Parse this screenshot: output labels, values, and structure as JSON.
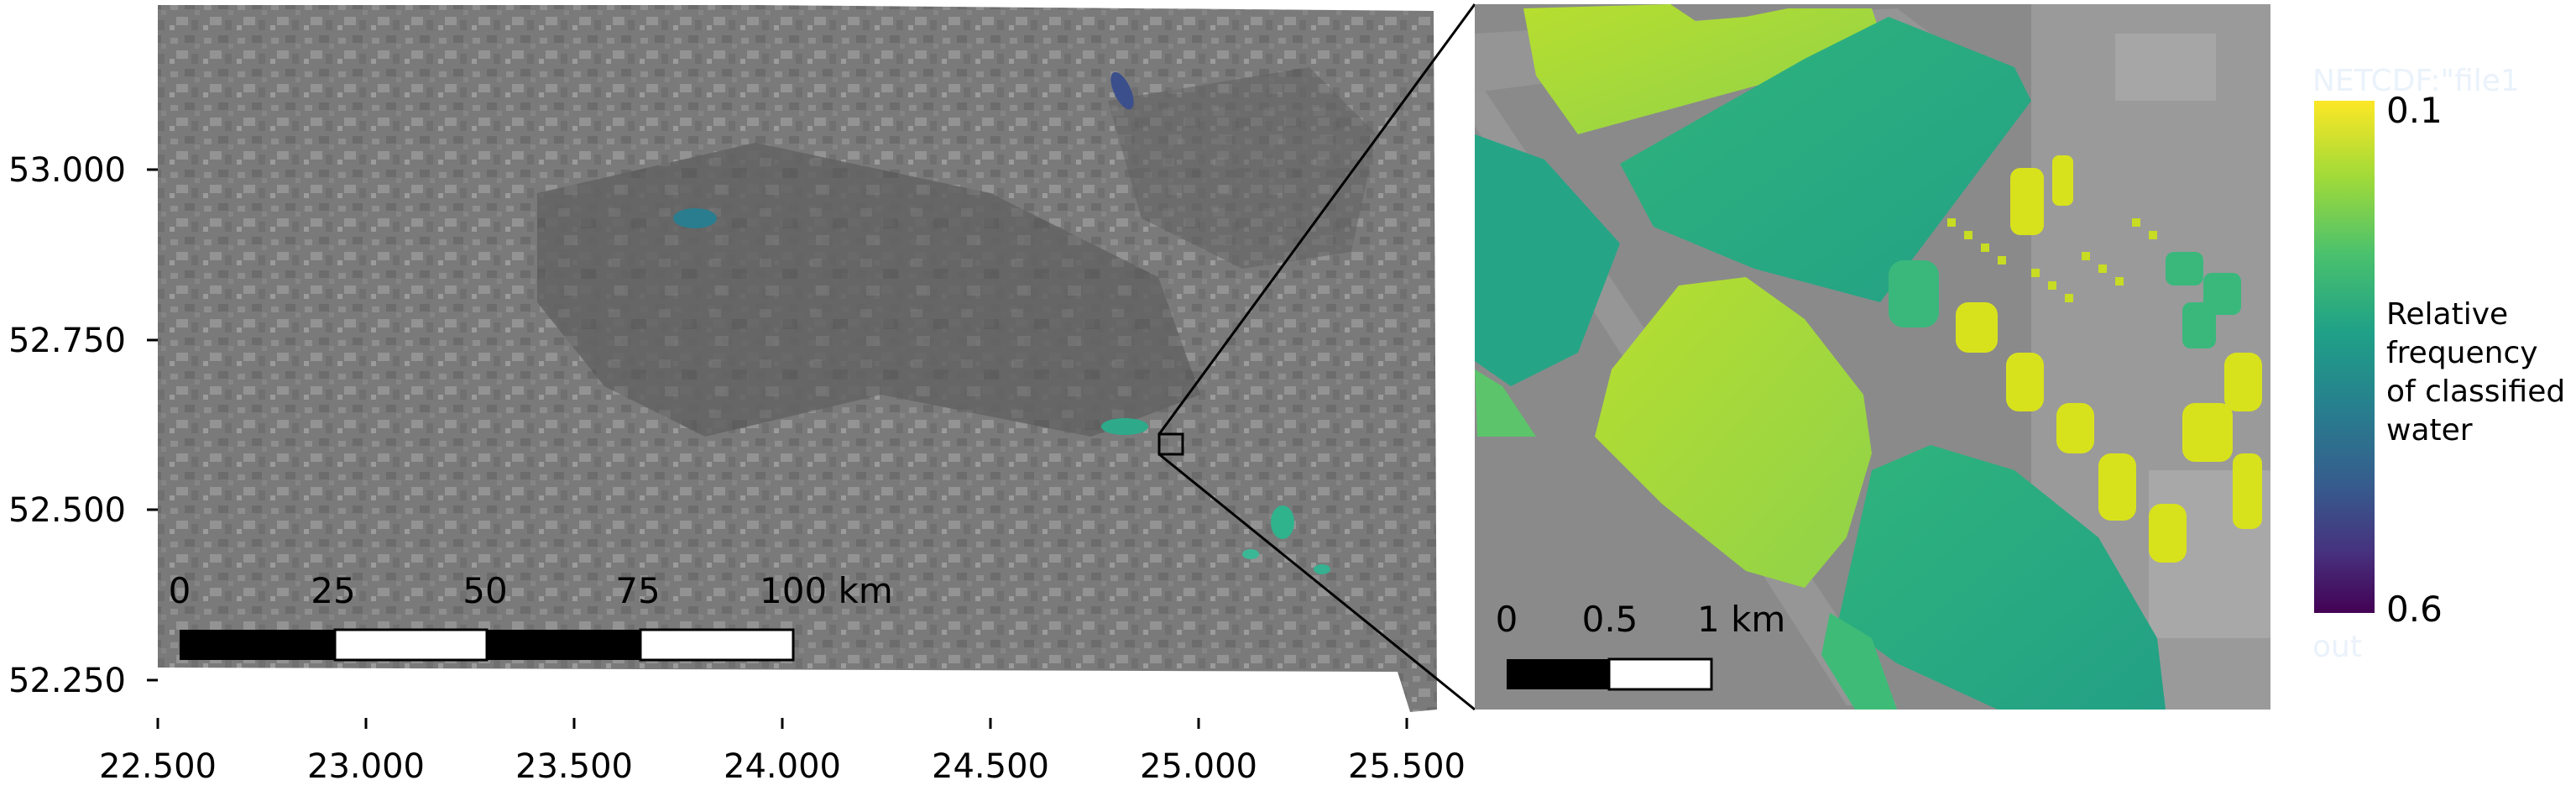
{
  "overview_map": {
    "y_ticks": [
      "53.000",
      "52.750",
      "52.500",
      "52.250"
    ],
    "x_ticks": [
      "22.500",
      "23.000",
      "23.500",
      "24.000",
      "24.500",
      "25.000",
      "25.500"
    ],
    "scale_bar": {
      "labels": [
        "0",
        "25",
        "50",
        "75",
        "100 km"
      ]
    }
  },
  "detail_map": {
    "scale_bar": {
      "labels": [
        "0",
        "0.5",
        "1 km"
      ]
    }
  },
  "legend": {
    "title_lines": [
      "Relative",
      "frequency",
      "of classified",
      "water"
    ],
    "top_value": "0.1",
    "bottom_value": "0.6",
    "faint_top_text": "NETCDF:\"file1",
    "faint_bottom_text": "out",
    "colormap": [
      "#fde725",
      "#a0da39",
      "#4ac16d",
      "#1fa187",
      "#277f8e",
      "#365c8d",
      "#46327e",
      "#440154"
    ]
  },
  "colors": {
    "background": "#ffffff",
    "frame": "#000000",
    "imagery": "#7b7b7b"
  }
}
